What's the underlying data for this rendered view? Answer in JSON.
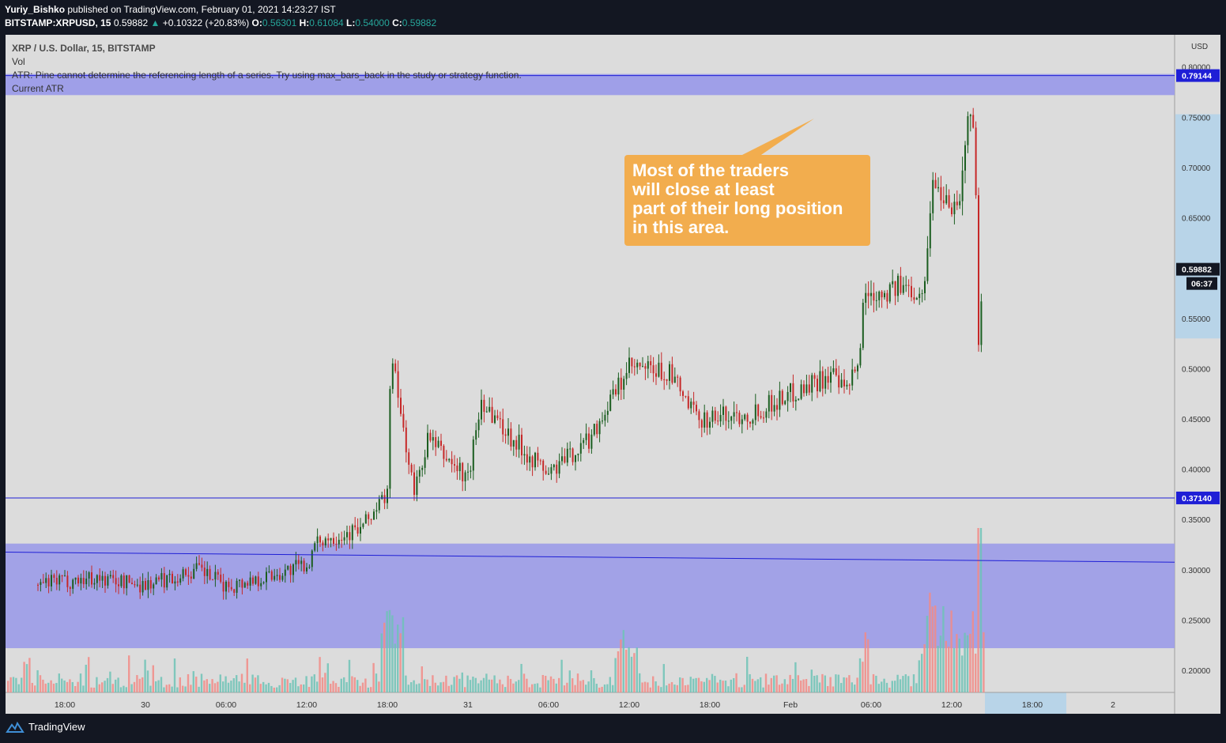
{
  "header": {
    "author": "Yuriy_Bishko",
    "published_text": "published on TradingView.com, February 01, 2021 14:23:27 IST",
    "symbol_interval": "BITSTAMP:XRPUSD, 15",
    "last": "0.59882",
    "change": "+0.10322 (+20.83%)",
    "o_label": "O:",
    "o_value": "0.56301",
    "h_label": "H:",
    "h_value": "0.61084",
    "l_label": "L:",
    "l_value": "0.54000",
    "c_label": "C:",
    "c_value": "0.59882"
  },
  "legend": {
    "line1": "XRP / U.S. Dollar, 15, BITSTAMP",
    "line2": "Vol",
    "line3": "ATR: Pine cannot determine the referencing length of a series. Try using max_bars_back in the study or strategy function.",
    "line4": "Current ATR"
  },
  "callout": {
    "lines": [
      "Most of the traders",
      "will close at least",
      "part of their long position",
      "in this area."
    ]
  },
  "footer": {
    "brand": "TradingView"
  },
  "colors": {
    "up": "#26a69a",
    "down": "#ef5350",
    "candle_up": "#1b5e20",
    "candle_down": "#c62828",
    "zone": "#9b9be8",
    "level_line": "#1f1fd6",
    "callout": "#f2ad4e",
    "price_label": "#1f1fd6"
  },
  "chart_data": {
    "type": "candlestick",
    "symbol": "XRP / U.S. Dollar",
    "interval": "15",
    "currency": "USD",
    "ylim": [
      0.178,
      0.832
    ],
    "y_ticks": [
      "0.80000",
      "0.75000",
      "0.70000",
      "0.65000",
      "0.60000",
      "0.55000",
      "0.50000",
      "0.45000",
      "0.40000",
      "0.35000",
      "0.30000",
      "0.25000",
      "0.20000"
    ],
    "x_ticks": [
      "18:00",
      "30",
      "06:00",
      "12:00",
      "18:00",
      "31",
      "06:00",
      "12:00",
      "18:00",
      "Feb",
      "06:00",
      "12:00",
      "18:00",
      "2"
    ],
    "price_labels": [
      {
        "value": 0.79144,
        "text": "0.79144",
        "kind": "level"
      },
      {
        "value": 0.59882,
        "text": "0.59882",
        "kind": "last"
      },
      {
        "value": 0.3714,
        "text": "0.37140",
        "kind": "level"
      }
    ],
    "countdown": "06:37",
    "horizontal_levels": [
      0.79144,
      0.3714
    ],
    "resistance_zone": [
      0.772,
      0.793
    ],
    "support_zone": [
      0.222,
      0.326
    ],
    "trendline": {
      "start": [
        "29 16:00",
        0.3175
      ],
      "end": [
        "2 00:00",
        0.3075
      ]
    },
    "price_path": [
      {
        "t": "29 16:00",
        "price": 0.285
      },
      {
        "t": "29 20:00",
        "price": 0.292
      },
      {
        "t": "30 00:00",
        "price": 0.285
      },
      {
        "t": "30 04:00",
        "price": 0.3
      },
      {
        "t": "30 06:00",
        "price": 0.283
      },
      {
        "t": "30 10:00",
        "price": 0.297
      },
      {
        "t": "30 12:00",
        "price": 0.305
      },
      {
        "t": "30 13:00",
        "price": 0.33
      },
      {
        "t": "30 16:00",
        "price": 0.34
      },
      {
        "t": "30 18:00",
        "price": 0.375
      },
      {
        "t": "30 18:15",
        "price": 0.515
      },
      {
        "t": "30 20:00",
        "price": 0.375
      },
      {
        "t": "30 21:00",
        "price": 0.43
      },
      {
        "t": "31 00:00",
        "price": 0.39
      },
      {
        "t": "31 01:00",
        "price": 0.47
      },
      {
        "t": "31 03:00",
        "price": 0.435
      },
      {
        "t": "31 06:00",
        "price": 0.395
      },
      {
        "t": "31 09:00",
        "price": 0.43
      },
      {
        "t": "31 12:00",
        "price": 0.5
      },
      {
        "t": "31 15:00",
        "price": 0.495
      },
      {
        "t": "31 17:00",
        "price": 0.45
      },
      {
        "t": "31 21:00",
        "price": 0.455
      },
      {
        "t": "1 00:00",
        "price": 0.475
      },
      {
        "t": "1 03:00",
        "price": 0.495
      },
      {
        "t": "1 04:00",
        "price": 0.475
      },
      {
        "t": "1 05:00",
        "price": 0.5
      },
      {
        "t": "1 05:30",
        "price": 0.575
      },
      {
        "t": "1 08:00",
        "price": 0.58
      },
      {
        "t": "1 10:00",
        "price": 0.58
      },
      {
        "t": "1 10:30",
        "price": 0.685
      },
      {
        "t": "1 12:30",
        "price": 0.66
      },
      {
        "t": "1 13:15",
        "price": 0.755
      },
      {
        "t": "1 13:45",
        "price": 0.725
      },
      {
        "t": "1 14:00",
        "price": 0.53
      },
      {
        "t": "1 14:23",
        "price": 0.59882
      }
    ],
    "volume_scale_note": "volume shown as relative bars at bottom"
  }
}
